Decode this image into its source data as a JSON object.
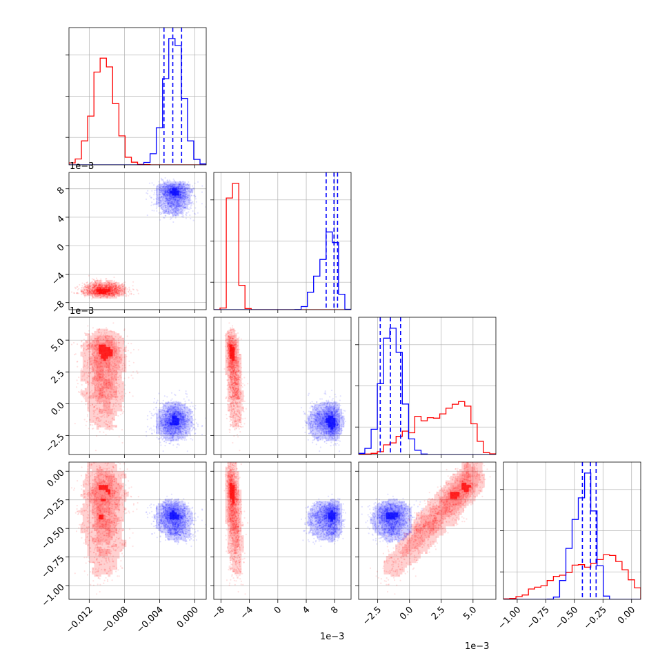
{
  "chart_data": {
    "type": "corner",
    "params": [
      {
        "id": "p0",
        "ticks": [
          -0.012,
          -0.008,
          -0.004,
          0.0
        ],
        "tick_labels": [
          "−0.012",
          "−0.008",
          "−0.004",
          "0.000"
        ],
        "offset_text": "1e−3",
        "range": [
          -0.0143,
          0.0013
        ]
      },
      {
        "id": "p1",
        "ticks": [
          -8,
          -4,
          0,
          4,
          8
        ],
        "tick_labels": [
          "−8",
          "−4",
          "0",
          "4",
          "8"
        ],
        "offset_text": "1e−3",
        "range": [
          -9.0,
          10.3
        ]
      },
      {
        "id": "p2",
        "ticks": [
          -2.5,
          0.0,
          2.5,
          5.0
        ],
        "tick_labels": [
          "−2.5",
          "0.0",
          "2.5",
          "5.0"
        ],
        "offset_text": "1e−3",
        "range": [
          -4.0,
          6.8
        ]
      },
      {
        "id": "p3",
        "ticks": [
          -1.0,
          -0.75,
          -0.5,
          -0.25,
          0.0
        ],
        "tick_labels": [
          "−1.00",
          "−0.75",
          "−0.50",
          "−0.25",
          "0.00"
        ],
        "offset_text": "",
        "range": [
          -1.12,
          0.08
        ]
      }
    ],
    "histogram_y_labels": [
      "1e−3",
      "1e−3"
    ],
    "colors": {
      "red": "#ff0000",
      "blue": "#0000ff"
    },
    "series": [
      {
        "color": "#ff0000",
        "mean": [
          -0.0097,
          -6.8,
          3.7,
          -0.05
        ],
        "sd": [
          0.001,
          0.5,
          1.6,
          0.1
        ],
        "hist_peak_bin": [
          -0.0097,
          -6.5,
          5.0,
          -0.03
        ]
      },
      {
        "color": "#0000ff",
        "mean": [
          -0.0025,
          7.2,
          -1.5,
          -0.36
        ],
        "sd": [
          0.0009,
          1.2,
          0.7,
          0.07
        ],
        "quantiles": [
          [
            -0.0035,
            -0.0025,
            -0.0015
          ],
          [
            6.8,
            7.9,
            8.4
          ],
          [
            -2.3,
            -1.5,
            -0.7
          ],
          [
            -0.43,
            -0.36,
            -0.31
          ]
        ]
      }
    ],
    "grid": true
  }
}
